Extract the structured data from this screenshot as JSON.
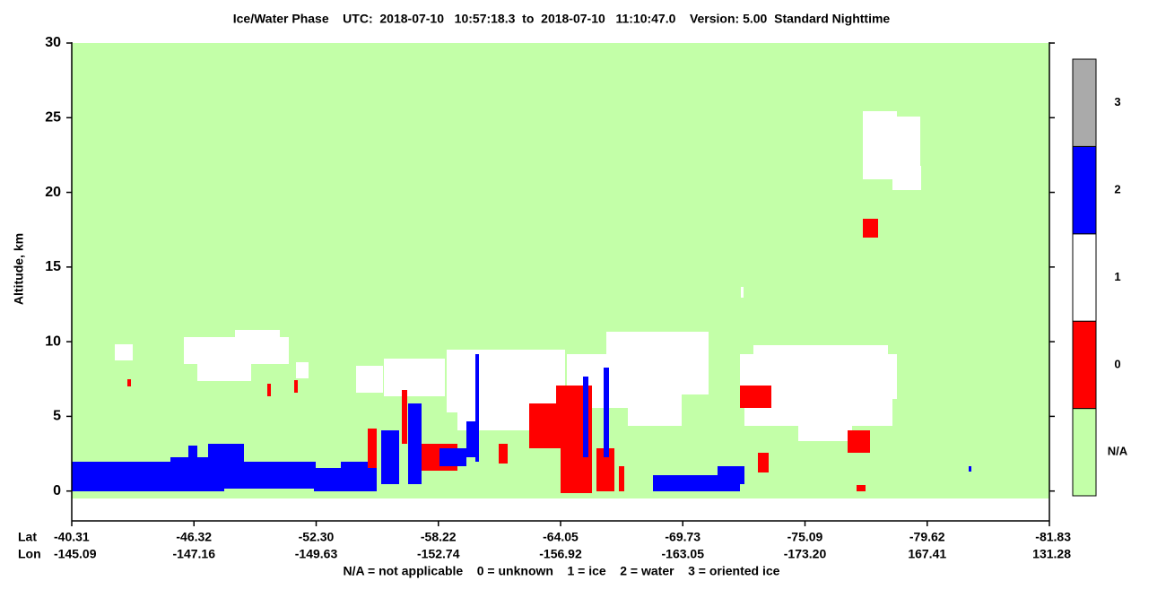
{
  "chart_data": {
    "type": "curtain",
    "title": "Ice/Water Phase    UTC:  2018-07-10   10:57:18.3  to  2018-07-10   11:10:47.0    Version: 5.00  Standard Nighttime",
    "ylabel": "Altitude, km",
    "ylim": [
      -2,
      30
    ],
    "yticks": [
      0,
      5,
      10,
      15,
      20,
      25,
      30
    ],
    "x_row_labels": [
      "Lat",
      "Lon"
    ],
    "x_ticks": [
      {
        "lat": "-40.31",
        "lon": "-145.09"
      },
      {
        "lat": "-46.32",
        "lon": "-147.16"
      },
      {
        "lat": "-52.30",
        "lon": "-149.63"
      },
      {
        "lat": "-58.22",
        "lon": "-152.74"
      },
      {
        "lat": "-64.05",
        "lon": "-156.92"
      },
      {
        "lat": "-69.73",
        "lon": "-163.05"
      },
      {
        "lat": "-75.09",
        "lon": "-173.20"
      },
      {
        "lat": "-79.62",
        "lon": "167.41"
      },
      {
        "lat": "-81.83",
        "lon": "131.28"
      }
    ],
    "colorbar": [
      {
        "label": "N/A",
        "color": "#c3ffa8"
      },
      {
        "label": "0",
        "color": "#ff0000"
      },
      {
        "label": "1",
        "color": "#ffffff"
      },
      {
        "label": "2",
        "color": "#0000ff"
      },
      {
        "label": "3",
        "color": "#aaaaaa"
      }
    ],
    "footer": "N/A = not applicable    0 = unknown    1 = ice    2 = water    3 = oriented ice"
  }
}
